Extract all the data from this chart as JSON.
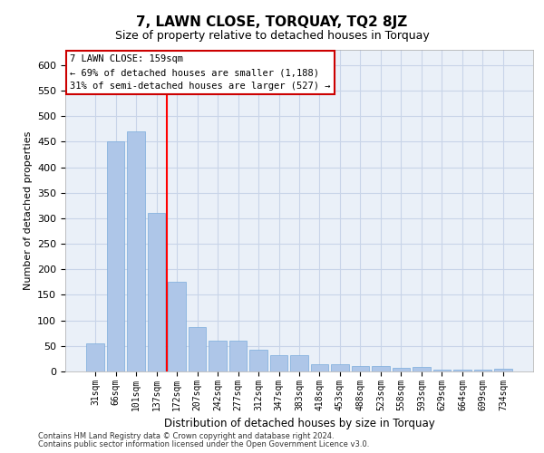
{
  "title": "7, LAWN CLOSE, TORQUAY, TQ2 8JZ",
  "subtitle": "Size of property relative to detached houses in Torquay",
  "xlabel": "Distribution of detached houses by size in Torquay",
  "ylabel": "Number of detached properties",
  "footnote1": "Contains HM Land Registry data © Crown copyright and database right 2024.",
  "footnote2": "Contains public sector information licensed under the Open Government Licence v3.0.",
  "categories": [
    "31sqm",
    "66sqm",
    "101sqm",
    "137sqm",
    "172sqm",
    "207sqm",
    "242sqm",
    "277sqm",
    "312sqm",
    "347sqm",
    "383sqm",
    "418sqm",
    "453sqm",
    "488sqm",
    "523sqm",
    "558sqm",
    "593sqm",
    "629sqm",
    "664sqm",
    "699sqm",
    "734sqm"
  ],
  "values": [
    55,
    450,
    470,
    310,
    175,
    87,
    60,
    60,
    42,
    32,
    32,
    15,
    15,
    10,
    10,
    7,
    8,
    3,
    3,
    3,
    5
  ],
  "bar_color": "#aec6e8",
  "bar_edge_color": "#7aacdc",
  "grid_color": "#c8d4e8",
  "background_color": "#eaf0f8",
  "red_line_x": 3.5,
  "annotation_line1": "7 LAWN CLOSE: 159sqm",
  "annotation_line2": "← 69% of detached houses are smaller (1,188)",
  "annotation_line3": "31% of semi-detached houses are larger (527) →",
  "annotation_box_color": "#ffffff",
  "annotation_box_edge": "#cc0000",
  "ylim": [
    0,
    630
  ],
  "yticks": [
    0,
    50,
    100,
    150,
    200,
    250,
    300,
    350,
    400,
    450,
    500,
    550,
    600
  ],
  "title_fontsize": 11,
  "subtitle_fontsize": 9
}
